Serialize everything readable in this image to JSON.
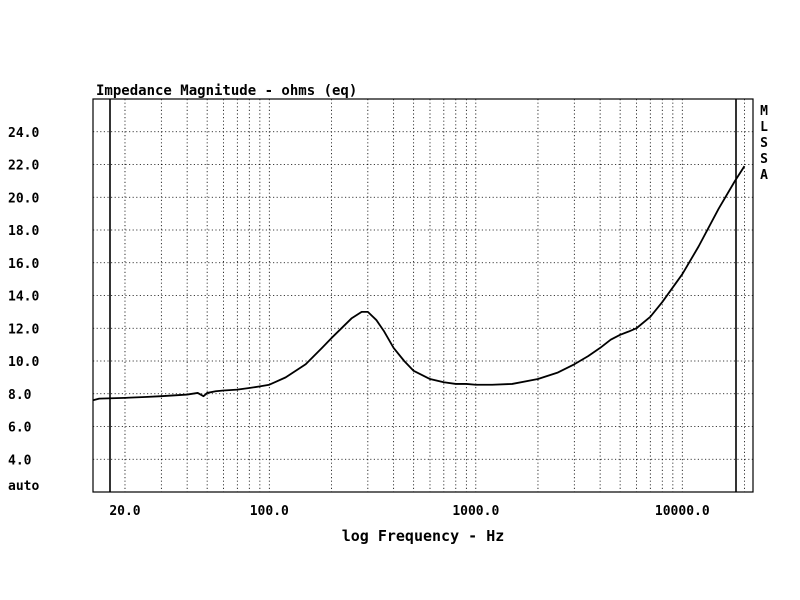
{
  "chart_data": {
    "type": "line",
    "title": "Impedance Magnitude - ohms (eq)",
    "xlabel": "log Frequency - Hz",
    "ylabel": "",
    "x_scale": "log",
    "xlim": [
      14,
      22000
    ],
    "ylim": [
      2.0,
      26.0
    ],
    "x_ticks": [
      {
        "value": 20,
        "label": "20.0"
      },
      {
        "value": 100,
        "label": "100.0"
      },
      {
        "value": 1000,
        "label": "1000.0"
      },
      {
        "value": 10000,
        "label": "10000.0"
      }
    ],
    "y_ticks": [
      {
        "value": 2.0,
        "label": "auto"
      },
      {
        "value": 4.0,
        "label": "4.0"
      },
      {
        "value": 6.0,
        "label": "6.0"
      },
      {
        "value": 8.0,
        "label": "8.0"
      },
      {
        "value": 10.0,
        "label": "10.0"
      },
      {
        "value": 12.0,
        "label": "12.0"
      },
      {
        "value": 14.0,
        "label": "14.0"
      },
      {
        "value": 16.0,
        "label": "16.0"
      },
      {
        "value": 18.0,
        "label": "18.0"
      },
      {
        "value": 20.0,
        "label": "20.0"
      },
      {
        "value": 22.0,
        "label": "22.0"
      },
      {
        "value": 24.0,
        "label": "24.0"
      }
    ],
    "grid": true,
    "side_label": [
      "M",
      "L",
      "S",
      "S",
      "A"
    ],
    "series": [
      {
        "color": "#000000",
        "x": [
          10,
          15,
          20,
          25,
          30,
          40,
          45,
          48,
          50,
          55,
          60,
          70,
          80,
          90,
          100,
          120,
          150,
          180,
          200,
          250,
          280,
          300,
          330,
          360,
          400,
          450,
          500,
          600,
          700,
          800,
          900,
          1000,
          1200,
          1500,
          2000,
          2500,
          3000,
          3500,
          4000,
          4500,
          5000,
          5500,
          6000,
          7000,
          8000,
          10000,
          12000,
          15000,
          18000,
          20000
        ],
        "y": [
          7.6,
          7.7,
          7.75,
          7.8,
          7.85,
          7.95,
          8.05,
          7.85,
          8.05,
          8.15,
          8.2,
          8.25,
          8.35,
          8.45,
          8.55,
          9.0,
          9.8,
          10.8,
          11.4,
          12.6,
          13.0,
          13.0,
          12.5,
          11.8,
          10.8,
          10.0,
          9.4,
          8.9,
          8.7,
          8.6,
          8.6,
          8.55,
          8.55,
          8.6,
          8.9,
          9.3,
          9.8,
          10.3,
          10.8,
          11.3,
          11.6,
          11.8,
          12.0,
          12.7,
          13.6,
          15.3,
          17.0,
          19.3,
          21.0,
          21.9
        ]
      }
    ]
  }
}
